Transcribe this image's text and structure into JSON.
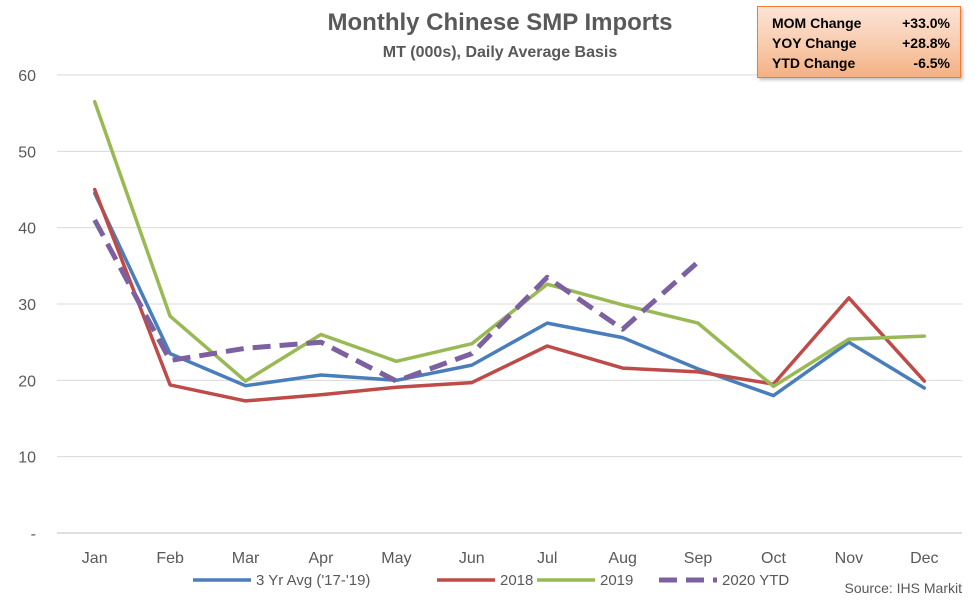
{
  "chart_data": {
    "type": "line",
    "title": "Monthly Chinese SMP Imports",
    "subtitle": "MT (000s), Daily Average Basis",
    "categories": [
      "Jan",
      "Feb",
      "Mar",
      "Apr",
      "May",
      "Jun",
      "Jul",
      "Aug",
      "Sep",
      "Oct",
      "Nov",
      "Dec"
    ],
    "y_ticks": [
      "-",
      "10",
      "20",
      "30",
      "40",
      "50",
      "60"
    ],
    "ylim": [
      0,
      60
    ],
    "grid": "horizontal",
    "legend_position": "bottom",
    "series": [
      {
        "name": "3 Yr Avg ('17-'19)",
        "color": "#4A7EBB",
        "style": "solid",
        "values": [
          44.5,
          23.5,
          19.3,
          20.7,
          20.0,
          22.0,
          27.5,
          25.6,
          21.5,
          18.0,
          25.0,
          19.0
        ]
      },
      {
        "name": "2018",
        "color": "#BE4B48",
        "style": "solid",
        "values": [
          45.0,
          19.4,
          17.3,
          18.1,
          19.1,
          19.7,
          24.5,
          21.6,
          21.1,
          19.5,
          30.8,
          19.9
        ]
      },
      {
        "name": "2019",
        "color": "#98B954",
        "style": "solid",
        "values": [
          56.5,
          28.4,
          19.9,
          26.0,
          22.5,
          24.8,
          32.6,
          29.9,
          27.5,
          19.2,
          25.4,
          25.8
        ]
      },
      {
        "name": "2020 YTD",
        "color": "#7D60A0",
        "style": "dashed",
        "values": [
          41.0,
          22.6,
          24.2,
          25.0,
          19.9,
          23.5,
          33.5,
          26.7,
          35.5,
          null,
          null,
          null
        ]
      }
    ],
    "source": "Source: IHS Markit"
  },
  "stats": [
    {
      "label": "MOM Change",
      "value": "+33.0%"
    },
    {
      "label": "YOY Change",
      "value": "+28.8%"
    },
    {
      "label": "YTD Change",
      "value": "-6.5%"
    }
  ],
  "colors": {
    "axis": "#BFBFBF",
    "grid": "#D9D9D9",
    "text": "#595959",
    "stats_border": "#ED7D31"
  }
}
